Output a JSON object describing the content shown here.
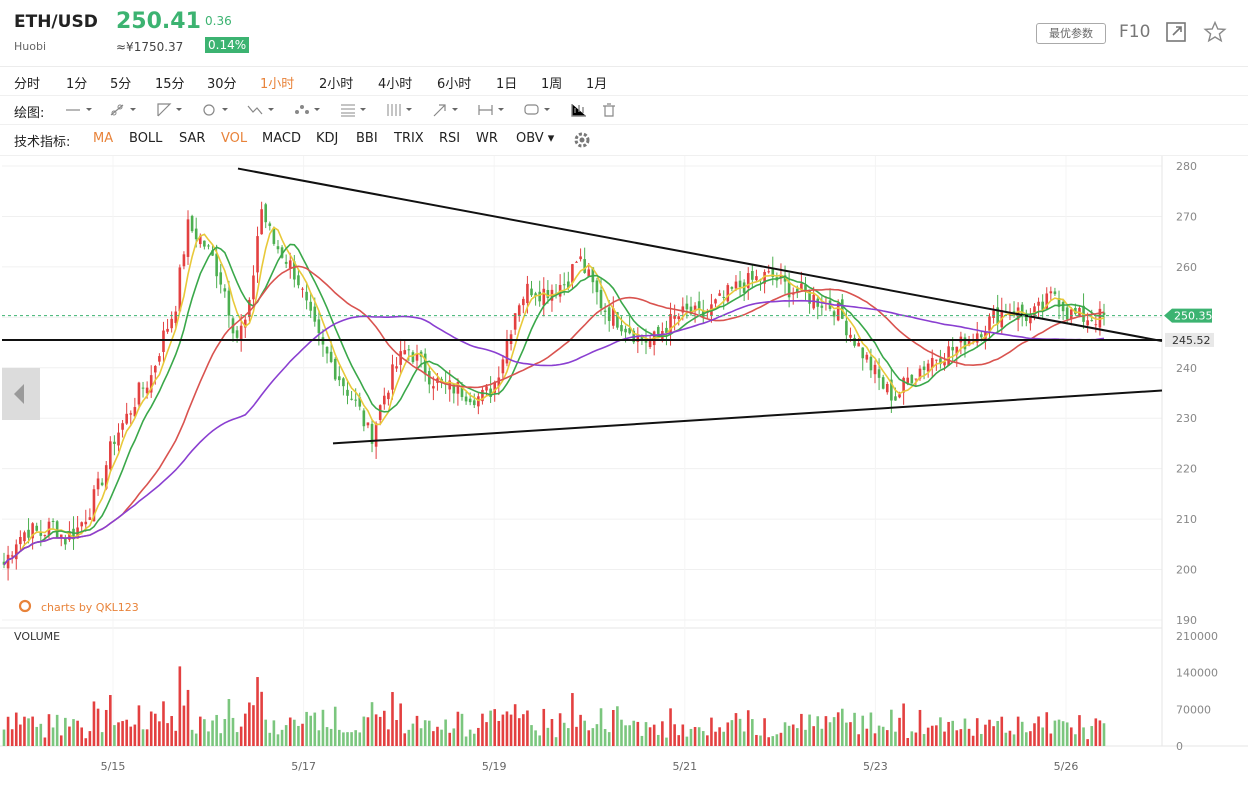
{
  "header": {
    "pair": "ETH/USD",
    "exchange": "Huobi",
    "price": "250.41",
    "cny_price": "≈¥1750.37",
    "change": "0.36",
    "change_pct": "0.14%",
    "params_button": "最优参数",
    "f10_button": "F10"
  },
  "intervals": [
    "分时",
    "1分",
    "5分",
    "15分",
    "30分",
    "1小时",
    "2小时",
    "4小时",
    "6小时",
    "1日",
    "1周",
    "1月"
  ],
  "active_interval": "1小时",
  "drawing_label": "绘图:",
  "indicators_label": "技术指标:",
  "indicators": [
    "MA",
    "BOLL",
    "SAR",
    "VOL",
    "MACD",
    "KDJ",
    "BBI",
    "TRIX",
    "RSI",
    "WR",
    "OBV"
  ],
  "active_indicators": [
    "MA",
    "VOL"
  ],
  "watermark": "charts by QKL123",
  "colors": {
    "up": "#e34040",
    "down": "#4caf50",
    "ma_yellow": "#e8c93a",
    "ma_green": "#3aa84a",
    "ma_red": "#d9534f",
    "ma_purple": "#8a3fd1",
    "accent": "#e8833a"
  },
  "chart_data": {
    "type": "candlestick",
    "price_axis": {
      "ticks": [
        190,
        200,
        210,
        220,
        230,
        240,
        250,
        260,
        270,
        280
      ],
      "range": [
        189,
        281
      ]
    },
    "volume_axis": {
      "label": "VOLUME",
      "ticks": [
        0,
        70000,
        140000,
        210000
      ],
      "range": [
        0,
        210000
      ]
    },
    "x_ticks": [
      "5/15",
      "5/17",
      "5/19",
      "5/21",
      "5/23",
      "5/26"
    ],
    "current_price": 250.35,
    "marked_level": 245.52,
    "ma_colors": [
      "yellow",
      "green",
      "red",
      "purple"
    ],
    "close_points": [
      201,
      206,
      208,
      207,
      209,
      206,
      208,
      212,
      218,
      226,
      230,
      235,
      238,
      246,
      252,
      268,
      266,
      262,
      256,
      246,
      250,
      272,
      265,
      262,
      258,
      250,
      244,
      240,
      236,
      232,
      226,
      234,
      240,
      244,
      241,
      238,
      236,
      236,
      235,
      234,
      236,
      244,
      253,
      256,
      255,
      256,
      257,
      262,
      257,
      252,
      250,
      248,
      246,
      245,
      248,
      250,
      251,
      250,
      252,
      254,
      256,
      257,
      258,
      258,
      256,
      255,
      254,
      253,
      252,
      248,
      244,
      240,
      236,
      234,
      238,
      240,
      242,
      243,
      244,
      246,
      248,
      250,
      252,
      251,
      250,
      252,
      255,
      251,
      250,
      250,
      250
    ]
  }
}
